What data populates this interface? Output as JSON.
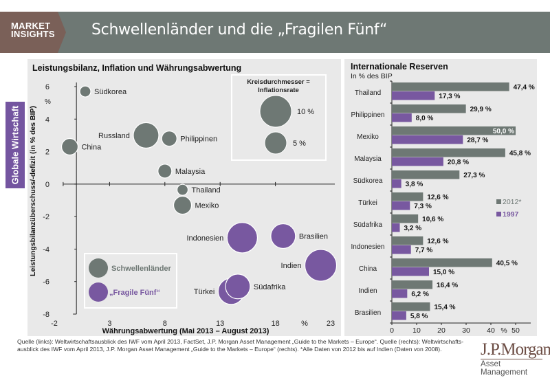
{
  "header": {
    "brand_line1": "MARKET",
    "brand_line2": "INSIGHTS",
    "title": "Schwellenländer und die „Fragilen Fünf“"
  },
  "sidetab": {
    "label": "Globale Wirtschaft"
  },
  "colors": {
    "emerging": "#6e7874",
    "fragile": "#7858a0",
    "panel_bg": "#e9e9e9",
    "brand": "#7a6058"
  },
  "chart_data": [
    {
      "type": "scatter",
      "subtype": "bubble",
      "title": "Leistungsbilanz, Inflation und Währungsabwertung",
      "xlabel": "Währungsabwertung (Mai 2013 – August 2013)",
      "ylabel": "Leistungsbilanzüberschuss/-defizit (in % des BIP)",
      "x_unit_label": "%",
      "y_unit_label": "%",
      "xlim": [
        -2,
        23
      ],
      "ylim": [
        -8,
        6
      ],
      "x_ticks": [
        "-2",
        "3",
        "8",
        "13",
        "18",
        "23"
      ],
      "y_ticks": [
        "6",
        "4",
        "2",
        "0",
        "-2",
        "-4",
        "-6",
        "-8"
      ],
      "size_legend": {
        "title_line1": "Kreisdurchmesser =",
        "title_line2": "Inflationsrate",
        "items": [
          {
            "value": 10,
            "label": "10 %"
          },
          {
            "value": 5,
            "label": "5 %"
          }
        ]
      },
      "legend": [
        {
          "name": "Schwellenländer",
          "group": "emerging"
        },
        {
          "name": "„Fragile Fünf“",
          "group": "fragile"
        }
      ],
      "legend_position": "bottom-left",
      "points": [
        {
          "label": "Südkorea",
          "x": 0.8,
          "y": 5.7,
          "inflation": 1.2,
          "group": "emerging",
          "label_side": "right"
        },
        {
          "label": "China",
          "x": -0.6,
          "y": 2.3,
          "inflation": 2.7,
          "group": "emerging",
          "label_side": "right"
        },
        {
          "label": "Russland",
          "x": 6.3,
          "y": 3.0,
          "inflation": 6.5,
          "group": "emerging",
          "label_side": "left"
        },
        {
          "label": "Philippinen",
          "x": 8.4,
          "y": 2.8,
          "inflation": 2.3,
          "group": "emerging",
          "label_side": "right"
        },
        {
          "label": "Malaysia",
          "x": 8.0,
          "y": 0.8,
          "inflation": 1.9,
          "group": "emerging",
          "label_side": "right"
        },
        {
          "label": "Thailand",
          "x": 9.6,
          "y": -0.35,
          "inflation": 1.2,
          "group": "emerging",
          "label_side": "right"
        },
        {
          "label": "Mexiko",
          "x": 9.6,
          "y": -1.3,
          "inflation": 3.2,
          "group": "emerging",
          "label_side": "right"
        },
        {
          "label": "Indonesien",
          "x": 15.0,
          "y": -3.3,
          "inflation": 9.2,
          "group": "fragile",
          "label_side": "left"
        },
        {
          "label": "Brasilien",
          "x": 18.7,
          "y": -3.2,
          "inflation": 6.1,
          "group": "fragile",
          "label_side": "right"
        },
        {
          "label": "Indien",
          "x": 22.1,
          "y": -5.0,
          "inflation": 10.0,
          "group": "fragile",
          "label_side": "left"
        },
        {
          "label": "Türkei",
          "x": 14.0,
          "y": -6.6,
          "inflation": 6.8,
          "group": "fragile",
          "label_side": "left"
        },
        {
          "label": "Südafrika",
          "x": 14.6,
          "y": -6.3,
          "inflation": 6.1,
          "group": "fragile",
          "label_side": "right"
        }
      ]
    },
    {
      "type": "bar",
      "orientation": "horizontal",
      "title": "Internationale Reserven",
      "subtitle": "In % des BIP",
      "xlabel": "%",
      "xlim": [
        0,
        55
      ],
      "x_ticks": [
        "0",
        "10",
        "20",
        "30",
        "40",
        "50"
      ],
      "categories": [
        "Thailand",
        "Philippinen",
        "Mexiko",
        "Malaysia",
        "Südkorea",
        "Türkei",
        "Südafrika",
        "Indonesien",
        "China",
        "Indien",
        "Brasilien"
      ],
      "series": [
        {
          "name": "2012*",
          "group": "emerging",
          "values": [
            47.4,
            29.9,
            50.0,
            45.8,
            27.3,
            12.6,
            10.6,
            12.6,
            40.5,
            16.4,
            15.4
          ],
          "labels": [
            "47,4 %",
            "29,9 %",
            "50,0 %",
            "45,8 %",
            "27,3 %",
            "12,6 %",
            "10,6 %",
            "12,6 %",
            "40,5 %",
            "16,4 %",
            "15,4 %"
          ]
        },
        {
          "name": "1997",
          "group": "fragile",
          "values": [
            17.3,
            8.0,
            28.7,
            20.8,
            3.8,
            7.3,
            3.2,
            7.7,
            15.0,
            6.2,
            5.8
          ],
          "labels": [
            "17,3 %",
            "8,0 %",
            "28,7 %",
            "20,8 %",
            "3,8 %",
            "7,3 %",
            "3,2 %",
            "7,7 %",
            "15,0 %",
            "6,2 %",
            "5,8 %"
          ]
        }
      ],
      "legend_position": "right"
    }
  ],
  "footer": {
    "source": "Quelle (links): Weltwirtschaftsausblick des IWF vom April 2013, FactSet, J.P. Morgan Asset Management „Guide to the Markets – Europe“. Quelle (rechts):  Weltwirtschafts-ausblick des IWF vom April 2013, J.P. Morgan Asset Management „Guide to the Markets – Europe“ (rechts). *Alle Daten von 2012 bis auf Indien (Daten von 2008)."
  },
  "logo": {
    "line1": "J.P.Morgan",
    "line2": "Asset Management"
  }
}
